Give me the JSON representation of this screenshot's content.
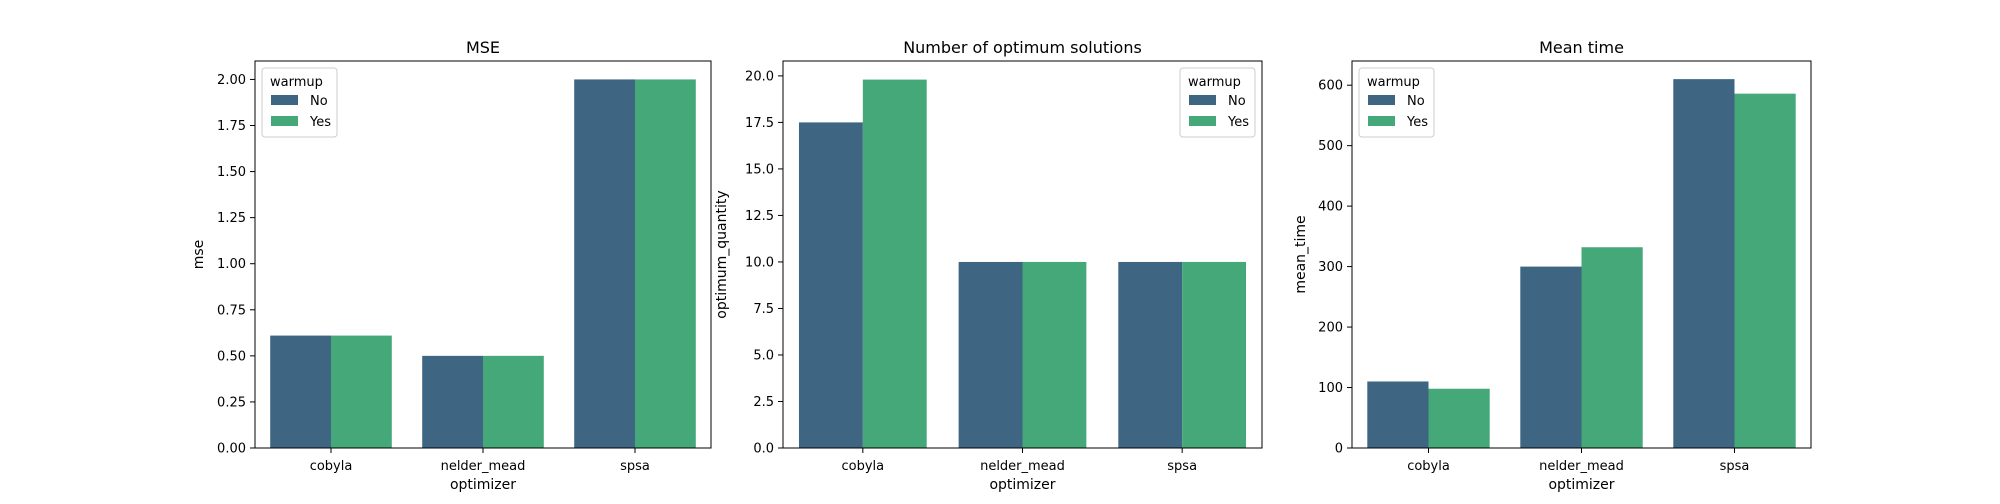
{
  "chart_data": [
    {
      "type": "bar",
      "title": "MSE",
      "xlabel": "optimizer",
      "ylabel": "mse",
      "categories": [
        "cobyla",
        "nelder_mead",
        "spsa"
      ],
      "series": [
        {
          "name": "No",
          "values": [
            0.61,
            0.5,
            2.0
          ]
        },
        {
          "name": "Yes",
          "values": [
            0.61,
            0.5,
            2.0
          ]
        }
      ],
      "ylim": [
        0,
        2.1
      ],
      "yticks": [
        "0.00",
        "0.25",
        "0.50",
        "0.75",
        "1.00",
        "1.25",
        "1.50",
        "1.75",
        "2.00"
      ],
      "legend": {
        "title": "warmup",
        "placement": "upper-left"
      },
      "grid": false
    },
    {
      "type": "bar",
      "title": "Number of optimum solutions",
      "xlabel": "optimizer",
      "ylabel": "optimum_quantity",
      "categories": [
        "cobyla",
        "nelder_mead",
        "spsa"
      ],
      "series": [
        {
          "name": "No",
          "values": [
            17.5,
            10.0,
            10.0
          ]
        },
        {
          "name": "Yes",
          "values": [
            19.8,
            10.0,
            10.0
          ]
        }
      ],
      "ylim": [
        0,
        20.8
      ],
      "yticks": [
        "0.0",
        "2.5",
        "5.0",
        "7.5",
        "10.0",
        "12.5",
        "15.0",
        "17.5",
        "20.0"
      ],
      "legend": {
        "title": "warmup",
        "placement": "upper-right"
      },
      "grid": false
    },
    {
      "type": "bar",
      "title": "Mean time",
      "xlabel": "optimizer",
      "ylabel": "mean_time",
      "categories": [
        "cobyla",
        "nelder_mead",
        "spsa"
      ],
      "series": [
        {
          "name": "No",
          "values": [
            110,
            300,
            610
          ]
        },
        {
          "name": "Yes",
          "values": [
            98,
            332,
            586
          ]
        }
      ],
      "ylim": [
        0,
        640
      ],
      "yticks": [
        "0",
        "100",
        "200",
        "300",
        "400",
        "500",
        "600"
      ],
      "legend": {
        "title": "warmup",
        "placement": "upper-left"
      },
      "grid": false
    }
  ],
  "colors": {
    "No": "#3e6582",
    "Yes": "#44a878"
  }
}
